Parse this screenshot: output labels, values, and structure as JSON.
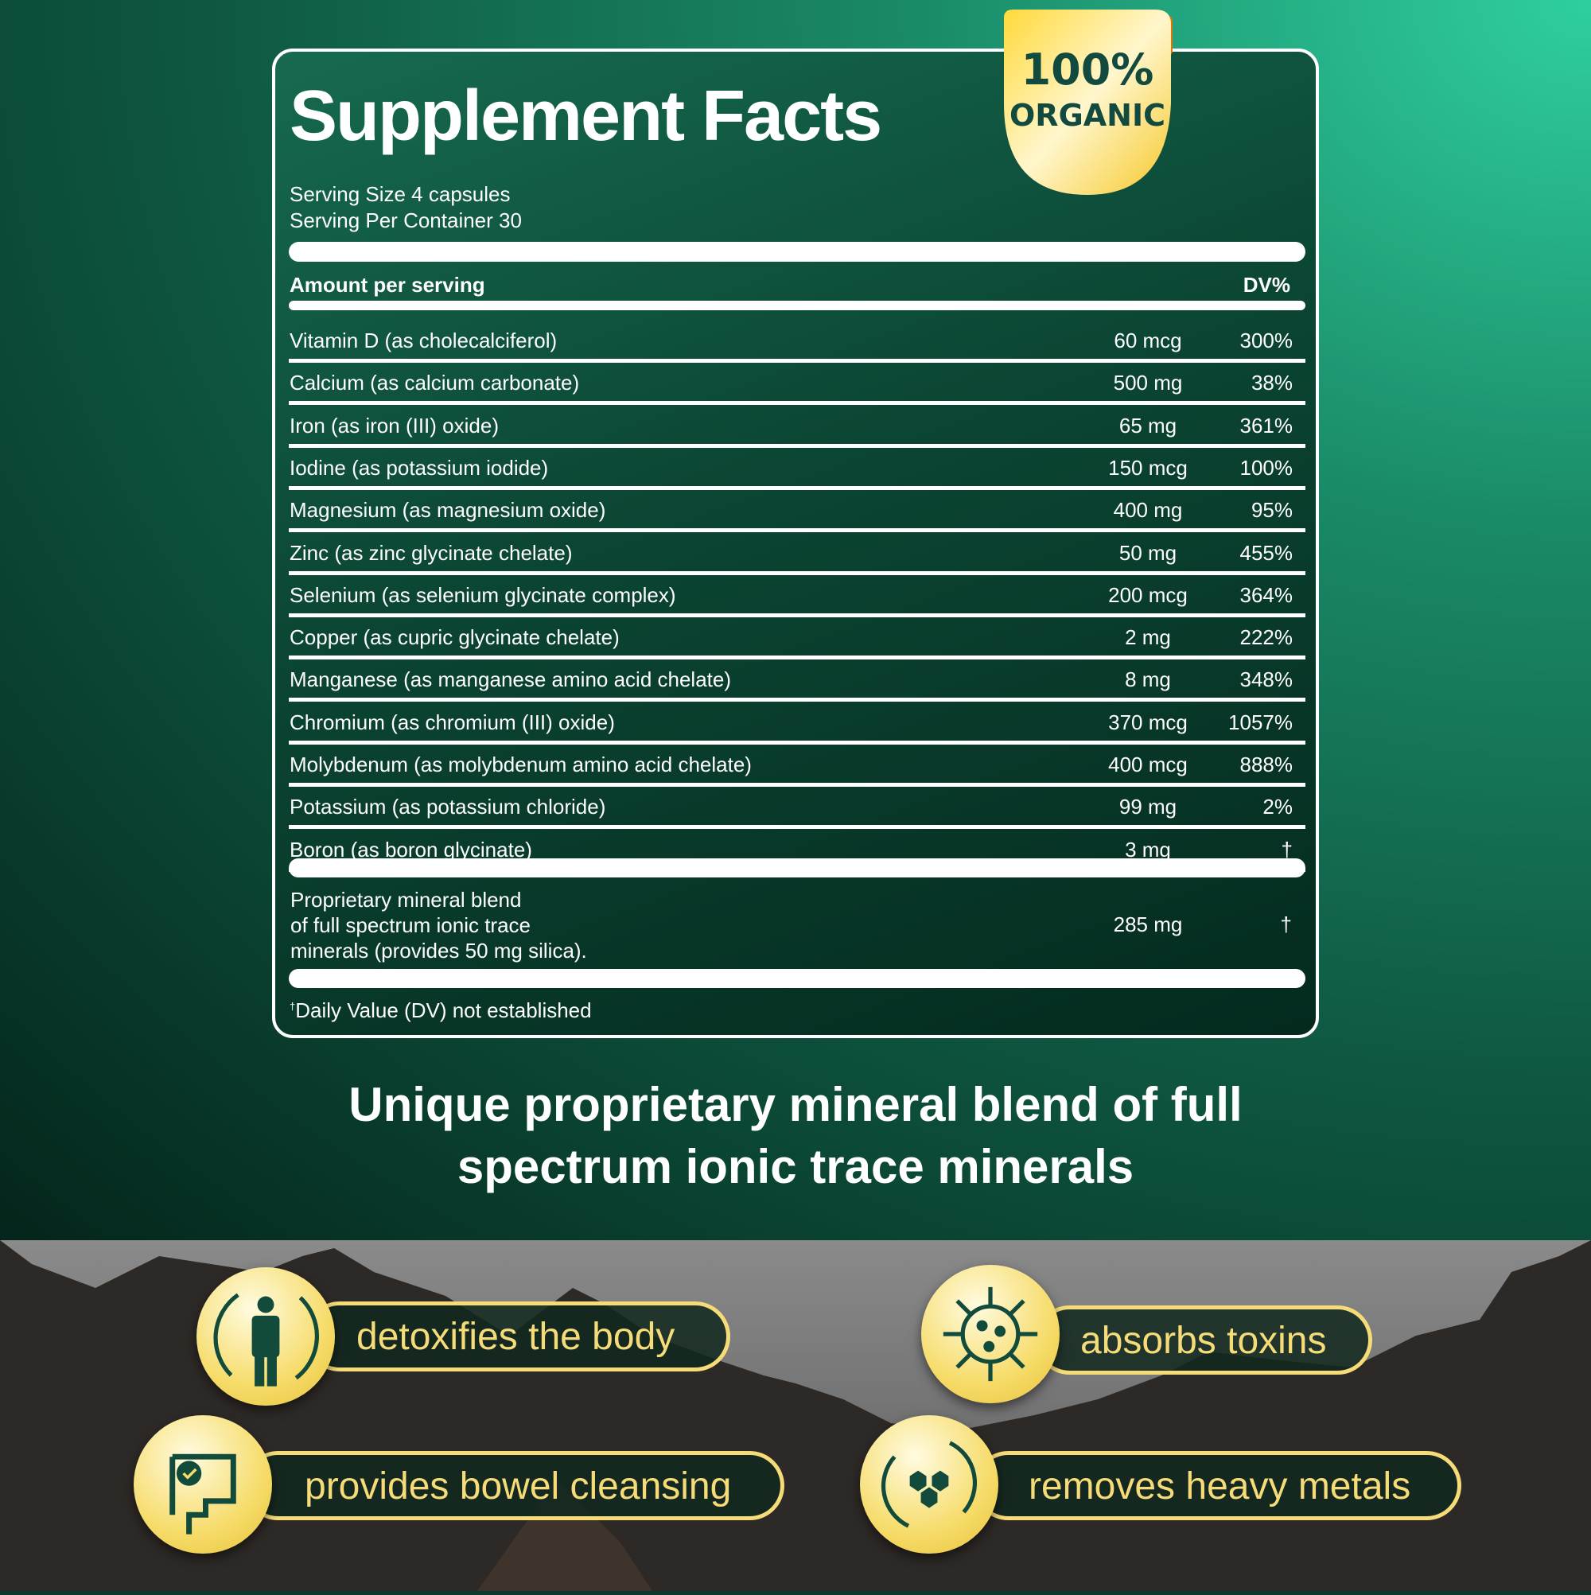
{
  "title": "Supplement Facts",
  "serving_size": "Serving Size 4 capsules",
  "servings_per_container": "Serving Per Container 30",
  "badge": {
    "line1": "100%",
    "line2": "ORGANIC"
  },
  "header": {
    "amount": "Amount per serving",
    "dv": "DV%"
  },
  "rows": [
    {
      "name": "Vitamin D (as cholecalciferol)",
      "amount": "60 mcg",
      "dv": "300%"
    },
    {
      "name": "Calcium (as calcium carbonate)",
      "amount": "500 mg",
      "dv": "38%"
    },
    {
      "name": "Iron (as iron (III) oxide)",
      "amount": "65 mg",
      "dv": "361%"
    },
    {
      "name": "Iodine (as potassium iodide)",
      "amount": "150 mcg",
      "dv": "100%"
    },
    {
      "name": "Magnesium (as magnesium oxide)",
      "amount": "400 mg",
      "dv": "95%"
    },
    {
      "name": "Zinc (as zinc glycinate chelate)",
      "amount": "50 mg",
      "dv": "455%"
    },
    {
      "name": "Selenium (as selenium glycinate complex)",
      "amount": "200 mcg",
      "dv": "364%"
    },
    {
      "name": "Copper (as cupric glycinate chelate)",
      "amount": "2 mg",
      "dv": "222%"
    },
    {
      "name": "Manganese (as manganese amino acid chelate)",
      "amount": "8 mg",
      "dv": "348%"
    },
    {
      "name": "Chromium (as chromium (III) oxide)",
      "amount": "370 mcg",
      "dv": "1057%"
    },
    {
      "name": "Molybdenum (as molybdenum amino acid chelate)",
      "amount": "400 mcg",
      "dv": "888%"
    },
    {
      "name": "Potassium (as potassium chloride)",
      "amount": "99 mg",
      "dv": "2%"
    },
    {
      "name": "Boron (as boron glycinate)",
      "amount": "3 mg",
      "dv": "†"
    }
  ],
  "blend": {
    "lines": [
      "Proprietary mineral blend",
      "of full spectrum ionic trace",
      "minerals (provides 50 mg silica)."
    ],
    "amount": "285 mg",
    "dv": "†"
  },
  "footnote": {
    "mark": "†",
    "text": "Daily Value (DV) not established"
  },
  "tagline": [
    "Unique proprietary mineral blend of full",
    "spectrum ionic trace minerals"
  ],
  "features": [
    {
      "label": "detoxifies the body",
      "icon": "body-cycle-icon"
    },
    {
      "label": "absorbs toxins",
      "icon": "virus-icon"
    },
    {
      "label": "provides bowel cleansing",
      "icon": "intestine-icon"
    },
    {
      "label": "removes heavy metals",
      "icon": "hexagon-cycle-icon"
    }
  ],
  "colors": {
    "gold": "#f5dc78",
    "dark_green": "#124a3c",
    "teal": "#2fcf9f"
  }
}
